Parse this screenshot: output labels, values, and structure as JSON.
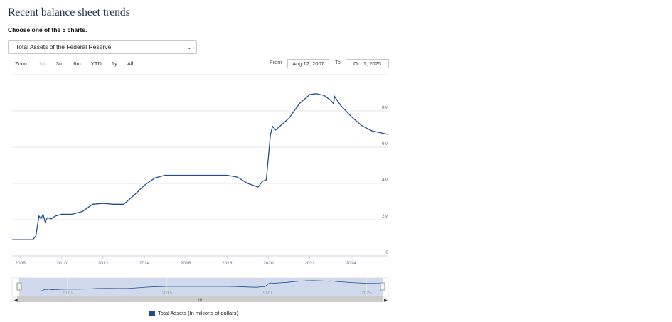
{
  "page": {
    "title": "Recent balance sheet trends",
    "subtitle": "Choose one of the 5 charts.",
    "select_value": "Total Assets of the Federal Reserve",
    "zoom_label": "Zoom",
    "zoom_buttons": [
      "1m",
      "3m",
      "6m",
      "YTD",
      "1y",
      "All"
    ],
    "from_label": "From",
    "from_value": "Aug 12, 2007",
    "to_label": "To",
    "to_value": "Oct 1, 2025",
    "legend_label": "Total Assets (In millions of dollars)"
  },
  "chart_data": {
    "type": "line",
    "title": "Total Assets of the Federal Reserve",
    "xlabel": "",
    "ylabel": "",
    "xlim": [
      2007.6,
      2025.8
    ],
    "ylim": [
      0,
      10
    ],
    "y_unit": "M",
    "x_ticks": [
      "2008",
      "2010",
      "2012",
      "2014",
      "2016",
      "2018",
      "2020",
      "2022",
      "2024"
    ],
    "y_ticks": [
      "0",
      "2M",
      "4M",
      "6M",
      "8M"
    ],
    "navigator_ticks": [
      "2010",
      "2015",
      "2020",
      "2025"
    ],
    "series": [
      {
        "name": "Total Assets (In millions of dollars)",
        "color": "#1f4e8c",
        "x": [
          2007.6,
          2008.6,
          2008.75,
          2008.9,
          2009.0,
          2009.1,
          2009.2,
          2009.3,
          2009.5,
          2009.7,
          2010.0,
          2010.5,
          2011.0,
          2011.5,
          2012.0,
          2012.5,
          2013.0,
          2013.5,
          2014.0,
          2014.5,
          2015.0,
          2016.0,
          2017.0,
          2018.0,
          2018.5,
          2019.0,
          2019.5,
          2019.7,
          2019.9,
          2020.1,
          2020.2,
          2020.35,
          2020.45,
          2020.6,
          2021.0,
          2021.5,
          2022.0,
          2022.3,
          2022.7,
          2023.0,
          2023.15,
          2023.2,
          2023.5,
          2024.0,
          2024.5,
          2025.0,
          2025.8
        ],
        "values": [
          0.9,
          0.9,
          1.1,
          2.2,
          2.05,
          2.3,
          1.85,
          2.1,
          2.05,
          2.2,
          2.3,
          2.3,
          2.45,
          2.85,
          2.9,
          2.85,
          2.85,
          3.35,
          3.9,
          4.3,
          4.45,
          4.45,
          4.45,
          4.45,
          4.35,
          4.0,
          3.8,
          4.1,
          4.2,
          6.7,
          7.15,
          6.95,
          7.05,
          7.2,
          7.6,
          8.4,
          8.9,
          8.95,
          8.85,
          8.6,
          8.4,
          8.8,
          8.3,
          7.7,
          7.2,
          6.9,
          6.7
        ]
      }
    ]
  }
}
